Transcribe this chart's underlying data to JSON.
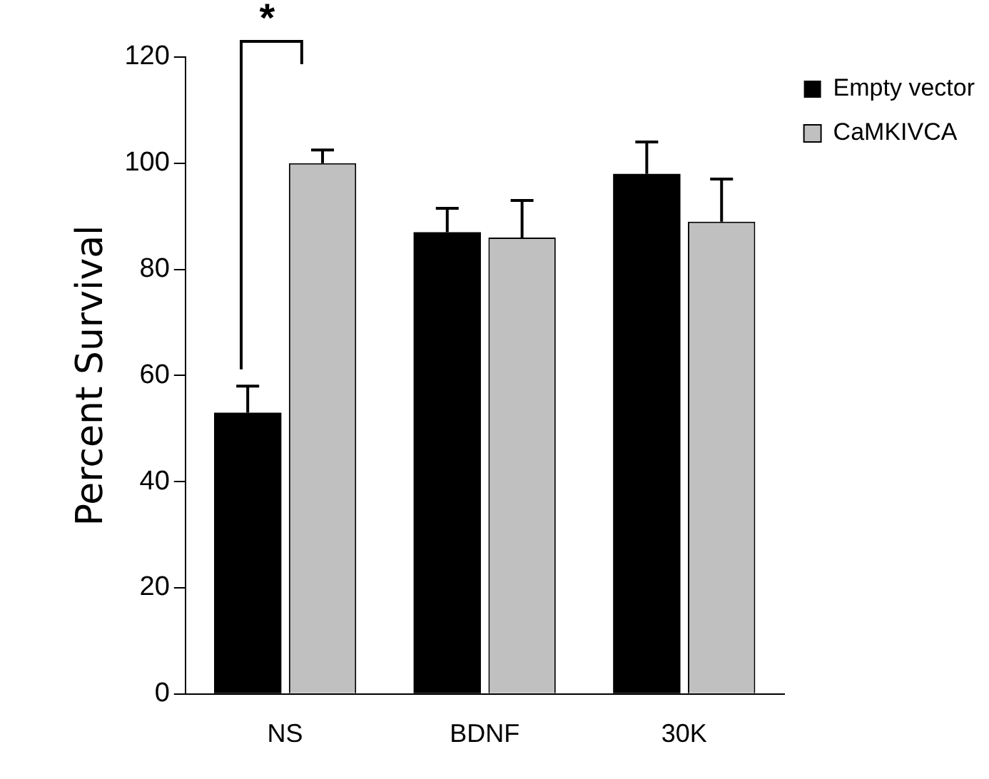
{
  "chart_data": {
    "type": "bar",
    "ylabel": "Percent Survival",
    "categories": [
      "NS",
      "BDNF",
      "30K"
    ],
    "series": [
      {
        "name": "Empty vector",
        "color": "#000000",
        "values": [
          53,
          87,
          98
        ],
        "errors": [
          [
            53,
            58
          ],
          [
            87,
            91.5
          ],
          [
            98,
            104
          ]
        ]
      },
      {
        "name": "CaMKIVCA",
        "color": "#c0c0c0",
        "values": [
          100,
          86,
          89
        ],
        "errors": [
          [
            100,
            102.5
          ],
          [
            86,
            93
          ],
          [
            89,
            97
          ]
        ]
      }
    ],
    "ylim": [
      0,
      120
    ],
    "yticks": [
      0,
      20,
      40,
      60,
      80,
      100,
      120
    ],
    "grid": false,
    "legend": "top right",
    "annotations": [
      "*"
    ]
  }
}
